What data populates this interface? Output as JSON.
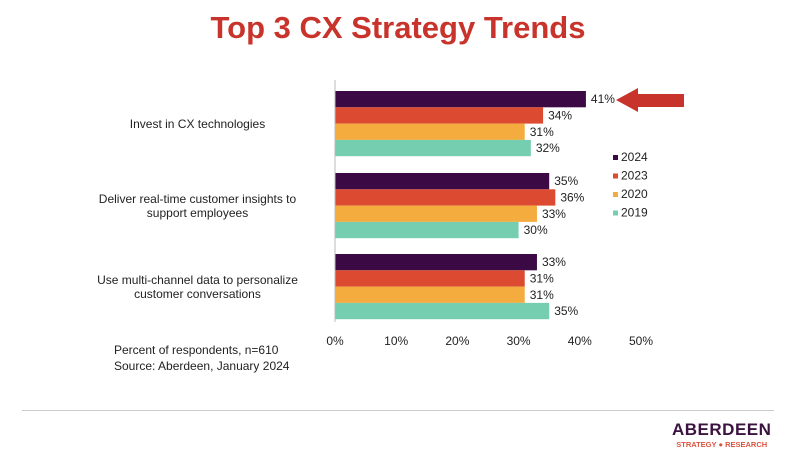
{
  "title": "Top 3 CX Strategy Trends",
  "chart_data": {
    "type": "bar",
    "orientation": "horizontal",
    "categories": [
      "Invest in CX technologies",
      "Deliver real-time customer insights to support employees",
      "Use multi-channel data to personalize customer conversations"
    ],
    "series": [
      {
        "name": "2024",
        "values": [
          41,
          35,
          33
        ],
        "color": "#3b0a45"
      },
      {
        "name": "2023",
        "values": [
          34,
          36,
          31
        ],
        "color": "#dc4a32"
      },
      {
        "name": "2020",
        "values": [
          31,
          33,
          31
        ],
        "color": "#f5ac3f"
      },
      {
        "name": "2019",
        "values": [
          32,
          30,
          35
        ],
        "color": "#76ceb0"
      }
    ],
    "xlim": [
      0,
      50
    ],
    "xticks": [
      "0%",
      "10%",
      "20%",
      "30%",
      "40%",
      "50%"
    ],
    "data_labels": [
      [
        "41%",
        "34%",
        "31%",
        "32%"
      ],
      [
        "35%",
        "36%",
        "33%",
        "30%"
      ],
      [
        "33%",
        "31%",
        "31%",
        "35%"
      ]
    ],
    "legend_position": "right",
    "grid": false,
    "annotation": "arrow pointing at 41% (Invest in CX technologies, 2024)",
    "arrow_color": "#c8342b"
  },
  "notes": {
    "line1": "Percent of respondents, n=610",
    "line2": "Source: Aberdeen, January 2024"
  },
  "logo": {
    "main": "ABERDEEN",
    "sub": "STRATEGY ● RESEARCH"
  }
}
